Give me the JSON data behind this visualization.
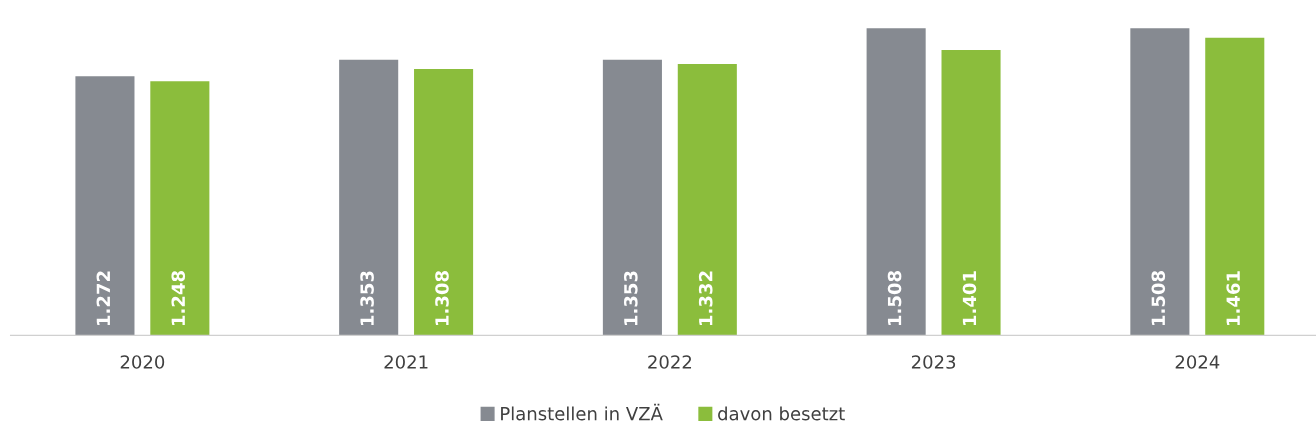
{
  "chart_data": {
    "type": "bar",
    "categories": [
      "2020",
      "2021",
      "2022",
      "2023",
      "2024"
    ],
    "series": [
      {
        "name": "Planstellen in VZÄ",
        "color": "#868a91",
        "values": [
          1272,
          1353,
          1353,
          1508,
          1508
        ],
        "value_labels": [
          "1.272",
          "1.353",
          "1.353",
          "1.508",
          "1.508"
        ]
      },
      {
        "name": "davon besetzt",
        "color": "#8bbd3c",
        "values": [
          1248,
          1308,
          1332,
          1401,
          1461
        ],
        "value_labels": [
          "1.248",
          "1.308",
          "1.332",
          "1.401",
          "1.461"
        ]
      }
    ],
    "grid": false,
    "legend": "bottom"
  }
}
